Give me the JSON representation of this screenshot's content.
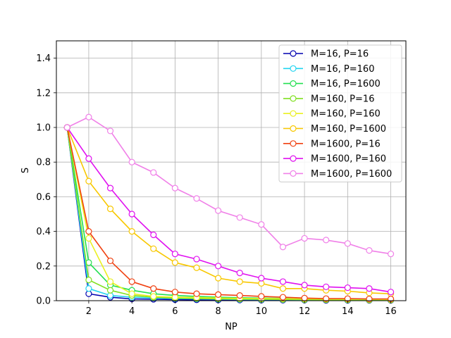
{
  "chart_data": {
    "type": "line",
    "xlabel": "NP",
    "ylabel": "S",
    "xlim": [
      0.5,
      16.7
    ],
    "ylim": [
      0,
      1.5
    ],
    "xticks": [
      "2",
      "4",
      "6",
      "8",
      "10",
      "12",
      "14",
      "16"
    ],
    "yticks": [
      "0.0",
      "0.2",
      "0.4",
      "0.6",
      "0.8",
      "1.0",
      "1.2",
      "1.4"
    ],
    "grid": true,
    "legend_position": "top-right",
    "series": [
      {
        "name": "M=16, P=16",
        "color": "#0000b0",
        "x": [
          1,
          2,
          3,
          4,
          5,
          6,
          7,
          8,
          9,
          10,
          11,
          12,
          13,
          14,
          15,
          16
        ],
        "values": [
          1.0,
          0.04,
          0.02,
          0.01,
          0.008,
          0.006,
          0.005,
          0.004,
          0.004,
          0.003,
          0.003,
          0.003,
          0.002,
          0.002,
          0.002,
          0.002
        ]
      },
      {
        "name": "M=16, P=160",
        "color": "#22d4f0",
        "x": [
          1,
          2,
          3,
          4,
          5,
          6,
          7,
          8,
          9,
          10,
          11,
          12,
          13,
          14,
          15,
          16
        ],
        "values": [
          1.0,
          0.07,
          0.03,
          0.02,
          0.015,
          0.012,
          0.01,
          0.008,
          0.007,
          0.006,
          0.006,
          0.005,
          0.005,
          0.004,
          0.004,
          0.004
        ]
      },
      {
        "name": "M=16, P=1600",
        "color": "#22e050",
        "x": [
          1,
          2,
          3,
          4,
          5,
          6,
          7,
          8,
          9,
          10,
          11,
          12,
          13,
          14,
          15,
          16
        ],
        "values": [
          1.0,
          0.22,
          0.09,
          0.06,
          0.04,
          0.03,
          0.025,
          0.02,
          0.017,
          0.015,
          0.013,
          0.012,
          0.011,
          0.01,
          0.009,
          0.008
        ]
      },
      {
        "name": "M=160, P=16",
        "color": "#80e020",
        "x": [
          1,
          2,
          3,
          4,
          5,
          6,
          7,
          8,
          9,
          10,
          11,
          12,
          13,
          14,
          15,
          16
        ],
        "values": [
          1.0,
          0.12,
          0.06,
          0.03,
          0.02,
          0.015,
          0.012,
          0.01,
          0.009,
          0.008,
          0.007,
          0.006,
          0.005,
          0.005,
          0.004,
          0.004
        ]
      },
      {
        "name": "M=160, P=160",
        "color": "#eaf020",
        "x": [
          1,
          2,
          3,
          4,
          5,
          6,
          7,
          8,
          9,
          10,
          11,
          12,
          13,
          14,
          15,
          16
        ],
        "values": [
          1.0,
          0.36,
          0.11,
          0.04,
          0.025,
          0.02,
          0.018,
          0.015,
          0.013,
          0.012,
          0.011,
          0.01,
          0.009,
          0.008,
          0.008,
          0.007
        ]
      },
      {
        "name": "M=160, P=1600",
        "color": "#f8c800",
        "x": [
          1,
          2,
          3,
          4,
          5,
          6,
          7,
          8,
          9,
          10,
          11,
          12,
          13,
          14,
          15,
          16
        ],
        "values": [
          1.0,
          0.69,
          0.53,
          0.4,
          0.3,
          0.22,
          0.19,
          0.13,
          0.11,
          0.1,
          0.07,
          0.07,
          0.06,
          0.055,
          0.045,
          0.04
        ]
      },
      {
        "name": "M=1600, P=16",
        "color": "#f04010",
        "x": [
          1,
          2,
          3,
          4,
          5,
          6,
          7,
          8,
          9,
          10,
          11,
          12,
          13,
          14,
          15,
          16
        ],
        "values": [
          1.0,
          0.4,
          0.23,
          0.11,
          0.07,
          0.05,
          0.04,
          0.035,
          0.03,
          0.025,
          0.02,
          0.015,
          0.012,
          0.012,
          0.01,
          0.01
        ]
      },
      {
        "name": "M=1600, P=160",
        "color": "#e010f0",
        "x": [
          1,
          2,
          3,
          4,
          5,
          6,
          7,
          8,
          9,
          10,
          11,
          12,
          13,
          14,
          15,
          16
        ],
        "values": [
          1.0,
          0.82,
          0.65,
          0.5,
          0.38,
          0.27,
          0.24,
          0.2,
          0.16,
          0.13,
          0.11,
          0.09,
          0.08,
          0.075,
          0.07,
          0.05
        ]
      },
      {
        "name": "M=1600, P=1600",
        "color": "#f080e8",
        "x": [
          1,
          2,
          3,
          4,
          5,
          6,
          7,
          8,
          9,
          10,
          11,
          12,
          13,
          14,
          15,
          16
        ],
        "values": [
          1.0,
          1.06,
          0.98,
          0.8,
          0.74,
          0.65,
          0.59,
          0.52,
          0.48,
          0.44,
          0.31,
          0.36,
          0.35,
          0.33,
          0.29,
          0.27
        ]
      }
    ]
  }
}
